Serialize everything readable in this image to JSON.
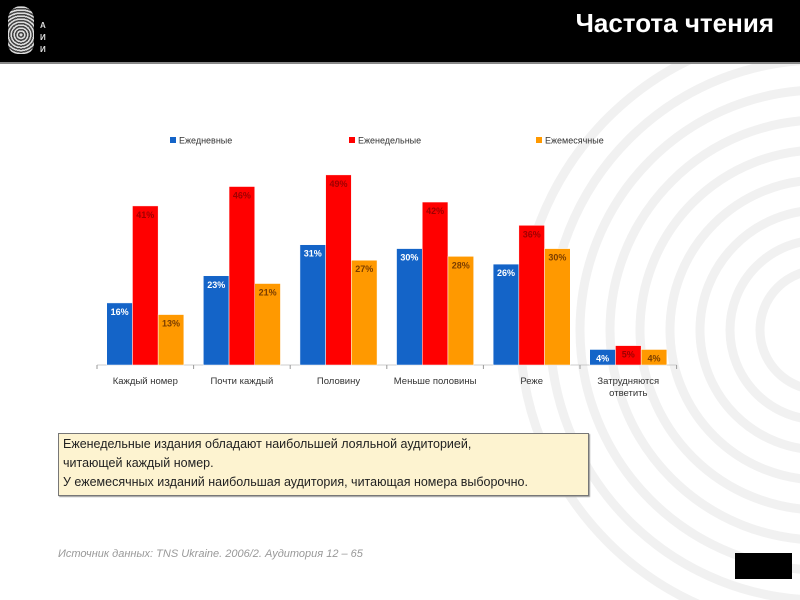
{
  "header": {
    "title": "Частота чтения",
    "logo_text": "АИИ"
  },
  "note": {
    "lines": [
      "Еженедельные издания обладают наибольшей лояльной аудиторией,",
      "читающей каждый номер.",
      "У ежемесячных изданий наибольшая аудитория, читающая номера выборочно."
    ]
  },
  "source": "Источник данных: TNS Ukraine. 2006/2. Аудитория 12 – 65",
  "chart_data": {
    "type": "bar",
    "title": "",
    "xlabel": "",
    "ylabel": "",
    "ylim": [
      0,
      55
    ],
    "grid": false,
    "legend_placement": "top",
    "categories": [
      "Каждый номер",
      "Почти каждый",
      "Половину",
      "Меньше половины",
      "Реже",
      "Затрудняются ответить"
    ],
    "series": [
      {
        "name": "Ежедневные",
        "color": "#1464c8",
        "label_color": "#ffffff",
        "values": [
          16,
          23,
          31,
          30,
          26,
          4
        ]
      },
      {
        "name": "Еженедельные",
        "color": "#ff0000",
        "label_color": "#a00000",
        "values": [
          41,
          46,
          49,
          42,
          36,
          5
        ]
      },
      {
        "name": "Ежемесячные",
        "color": "#ff9900",
        "label_color": "#7a3d00",
        "values": [
          13,
          21,
          27,
          28,
          30,
          4
        ]
      }
    ],
    "value_suffix": "%"
  }
}
